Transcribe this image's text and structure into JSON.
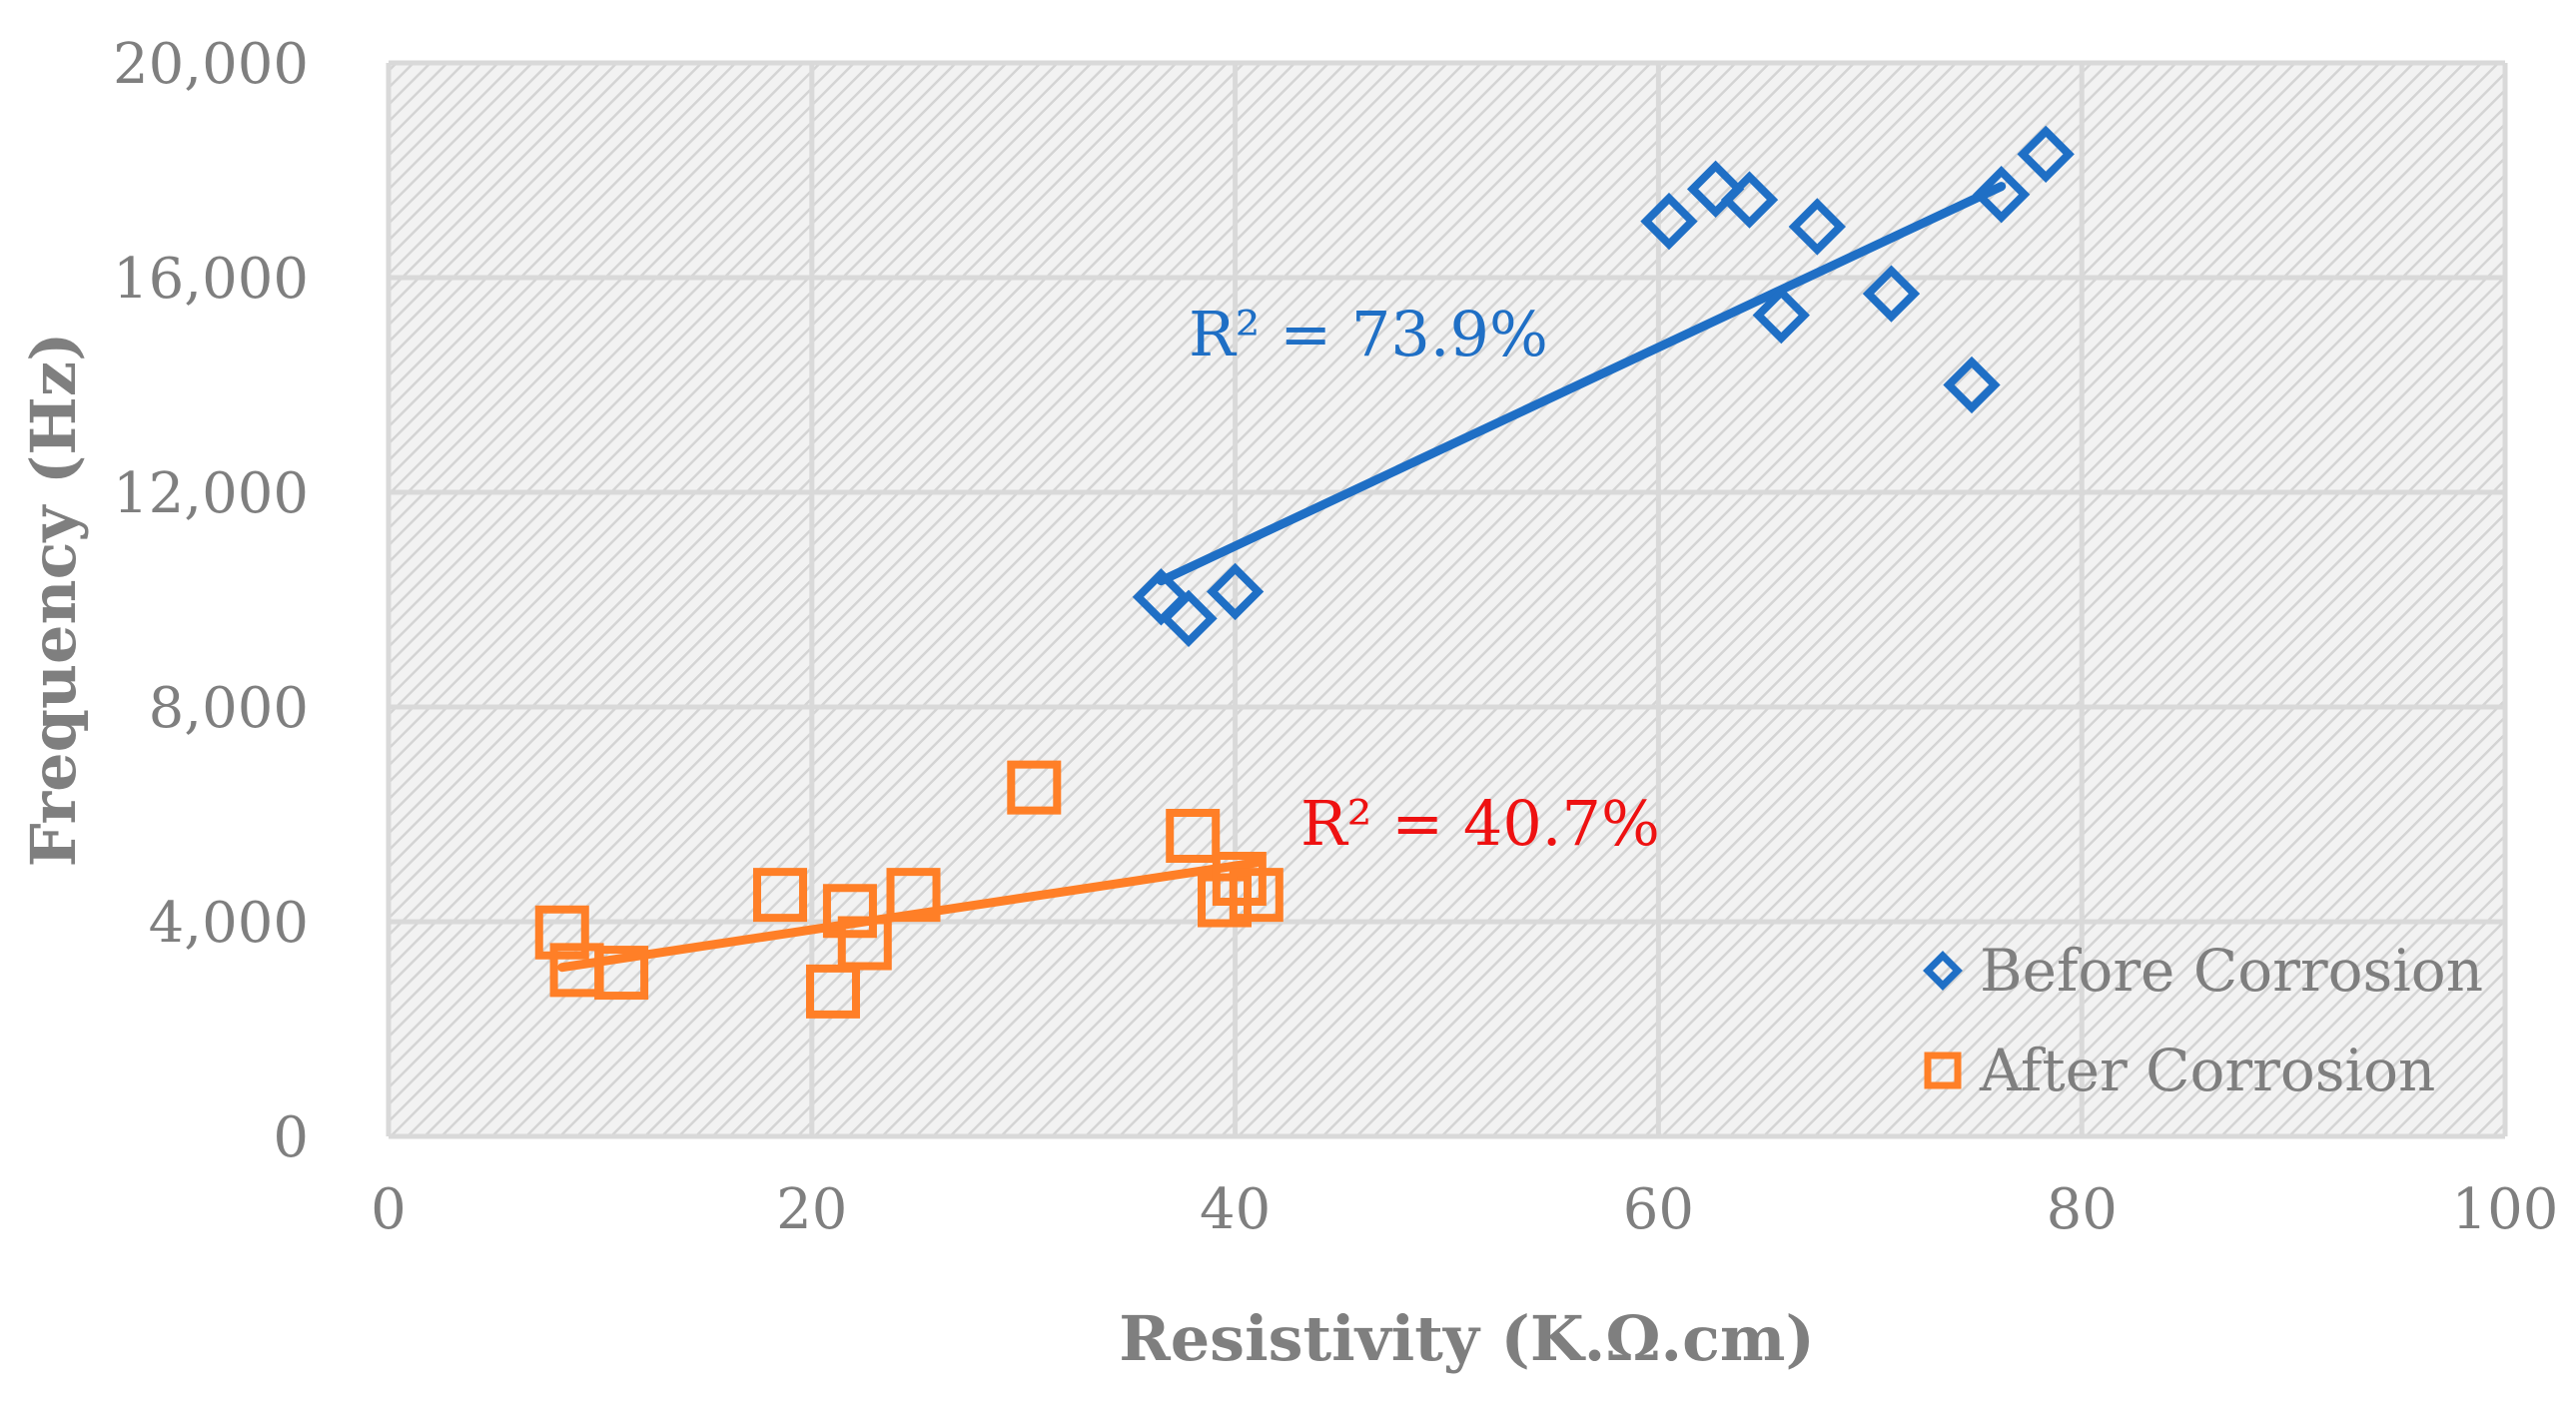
{
  "chart_data": {
    "type": "scatter",
    "title": "",
    "xlabel": "Resistivity (K.Ω.cm)",
    "ylabel": "Frequency (Hz)",
    "xlim": [
      0,
      100
    ],
    "ylim": [
      0,
      20000
    ],
    "x_ticks": [
      0,
      20,
      40,
      60,
      80,
      100
    ],
    "y_ticks": [
      0,
      4000,
      8000,
      12000,
      16000,
      20000
    ],
    "x_tick_labels": [
      "0",
      "20",
      "40",
      "60",
      "80",
      "100"
    ],
    "y_tick_labels": [
      "0",
      "4,000",
      "8,000",
      "12,000",
      "16,000",
      "20,000"
    ],
    "grid": true,
    "legend_position": "bottom-right",
    "series": [
      {
        "name": "Before Corrosion",
        "marker": "diamond",
        "color": "#1f6fc5",
        "x": [
          36.5,
          37.8,
          40.0,
          60.5,
          62.7,
          64.3,
          65.8,
          67.5,
          71.0,
          74.8,
          76.2,
          78.3
        ],
        "y": [
          10050,
          9650,
          10150,
          17050,
          17650,
          17450,
          15300,
          16950,
          15700,
          14000,
          17550,
          18300
        ],
        "trendline": {
          "x": [
            36.5,
            76.2
          ],
          "y": [
            10350,
            17700
          ]
        },
        "r2_label": "R² = 73.9%"
      },
      {
        "name": "After Corrosion",
        "marker": "square",
        "color": "#ff7f27",
        "x": [
          8.2,
          8.9,
          11.0,
          18.5,
          21.0,
          21.8,
          22.5,
          24.8,
          30.5,
          38.0,
          39.5,
          40.2,
          41.0
        ],
        "y": [
          3800,
          3100,
          3050,
          4500,
          2700,
          4200,
          3600,
          4500,
          6500,
          5600,
          4400,
          4800,
          4500
        ],
        "trendline": {
          "x": [
            8.2,
            41.0
          ],
          "y": [
            3150,
            5100
          ]
        },
        "r2_label": "R² = 40.7%",
        "r2_color": "#ee1111"
      }
    ]
  }
}
